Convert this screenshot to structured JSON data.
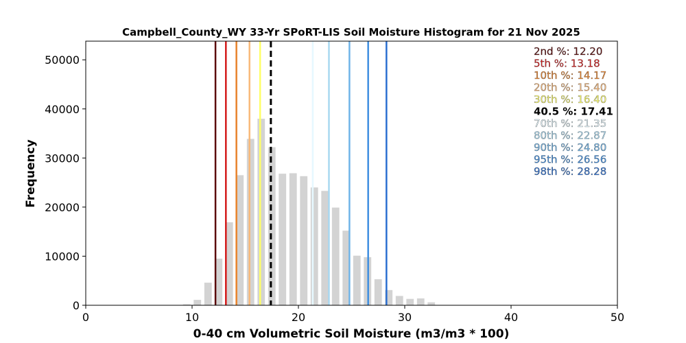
{
  "chart_data": {
    "type": "bar",
    "title": "Campbell_County_WY 33-Yr SPoRT-LIS Soil Moisture Histogram for 21 Nov 2025",
    "xlabel": "0-40 cm Volumetric Soil Moisture (m3/m3 * 100)",
    "ylabel": "Frequency",
    "xlim": [
      0,
      50
    ],
    "ylim": [
      0,
      53800
    ],
    "xticks": [
      "0",
      "10",
      "20",
      "30",
      "40",
      "50"
    ],
    "yticks": [
      "0",
      "10000",
      "20000",
      "30000",
      "40000",
      "50000"
    ],
    "grid": false,
    "bar_width": 0.7,
    "bar_color": "#d3d3d3",
    "bins": {
      "x": [
        9.5,
        10.5,
        11.5,
        12.5,
        13.5,
        14.5,
        15.5,
        16.5,
        17.5,
        18.5,
        19.5,
        20.5,
        21.5,
        22.5,
        23.5,
        24.5,
        25.5,
        26.5,
        27.5,
        28.5,
        29.5,
        30.5,
        31.5,
        32.5
      ],
      "values": [
        200,
        1100,
        4600,
        9500,
        16900,
        26500,
        33900,
        38000,
        32200,
        26800,
        26900,
        26300,
        24000,
        23300,
        19900,
        15200,
        10100,
        9800,
        5300,
        3100,
        1900,
        1300,
        1400,
        600
      ]
    },
    "percentile_lines": [
      {
        "label": "2nd %: 12.20",
        "value": 12.2,
        "color": "#5a0a0a",
        "dashed": false,
        "bold": false
      },
      {
        "label": "5th %: 13.18",
        "value": 13.18,
        "color": "#d41a1a",
        "dashed": false,
        "bold": false
      },
      {
        "label": "10th %: 14.17",
        "value": 14.17,
        "color": "#e8822a",
        "dashed": false,
        "bold": false
      },
      {
        "label": "20th %: 15.40",
        "value": 15.4,
        "color": "#f8b878",
        "dashed": false,
        "bold": false
      },
      {
        "label": "30th %: 16.40",
        "value": 16.4,
        "color": "#ffff66",
        "dashed": false,
        "bold": false
      },
      {
        "label": "40.5 %: 17.41",
        "value": 17.41,
        "color": "#000000",
        "dashed": true,
        "bold": true
      },
      {
        "label": "70th %: 21.35",
        "value": 21.35,
        "color": "#e6f8ff",
        "dashed": false,
        "bold": false
      },
      {
        "label": "80th %: 22.87",
        "value": 22.87,
        "color": "#a8d8f0",
        "dashed": false,
        "bold": false
      },
      {
        "label": "90th %: 24.80",
        "value": 24.8,
        "color": "#6fb4e8",
        "dashed": false,
        "bold": false
      },
      {
        "label": "95th %: 26.56",
        "value": 26.56,
        "color": "#3e8ee0",
        "dashed": false,
        "bold": false
      },
      {
        "label": "98th %: 28.28",
        "value": 28.28,
        "color": "#2a6ed0",
        "dashed": false,
        "bold": false
      }
    ],
    "legend_placement": "top-right"
  }
}
